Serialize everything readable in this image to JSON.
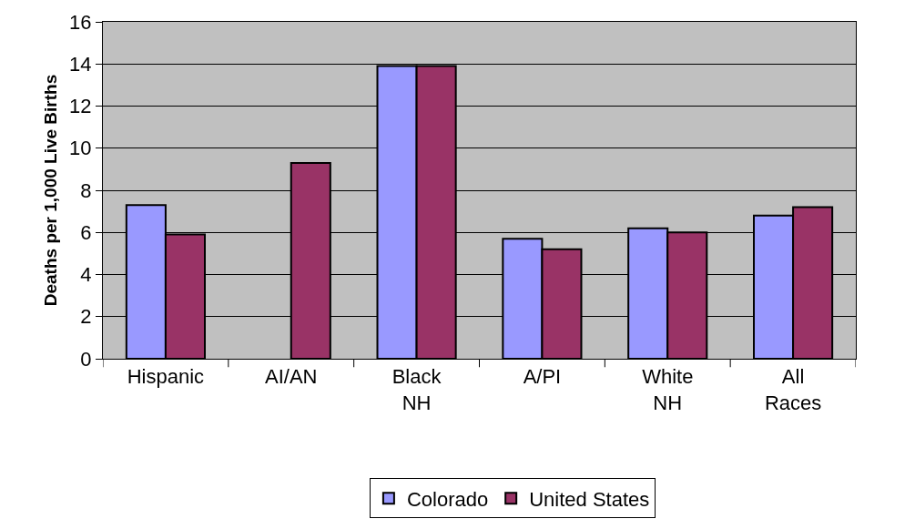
{
  "chart_data": {
    "type": "bar",
    "ylabel": "Deaths per 1,000 Live Births",
    "categories": [
      "Hispanic",
      "AI/AN",
      "Black NH",
      "A/PI",
      "White NH",
      "All Races"
    ],
    "series": [
      {
        "name": "Colorado",
        "color": "#9999ff",
        "values": [
          7.3,
          null,
          13.9,
          5.7,
          6.2,
          6.8
        ]
      },
      {
        "name": "United States",
        "color": "#993366",
        "values": [
          5.9,
          9.3,
          13.9,
          5.2,
          6.0,
          7.2
        ]
      }
    ],
    "ylim": [
      0,
      16
    ],
    "yticks": [
      0,
      2,
      4,
      6,
      8,
      10,
      12,
      14,
      16
    ],
    "grid": "y",
    "legend": "bottom"
  }
}
